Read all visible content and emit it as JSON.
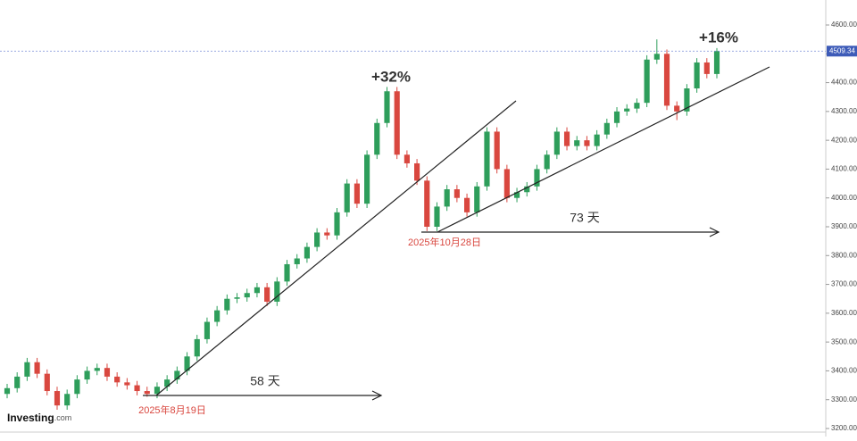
{
  "chart_data": {
    "type": "candlestick",
    "open": [
      3320,
      3340,
      3380,
      3430,
      3390,
      3330,
      3280,
      3320,
      3370,
      3400,
      3410,
      3380,
      3360,
      3350,
      3330,
      3320,
      3345,
      3370,
      3400,
      3450,
      3510,
      3570,
      3610,
      3650,
      3655,
      3670,
      3690,
      3640,
      3710,
      3770,
      3790,
      3830,
      3880,
      3870,
      3950,
      4050,
      3980,
      4150,
      4260,
      4370,
      4150,
      4120,
      4060,
      3900,
      3970,
      4030,
      4000,
      3950,
      4040,
      4230,
      4100,
      4000,
      4020,
      4040,
      4100,
      4150,
      4230,
      4180,
      4200,
      4180,
      4220,
      4260,
      4300,
      4310,
      4330,
      4480,
      4500,
      4320,
      4300,
      4380,
      4470,
      4430
    ],
    "high": [
      3355,
      3395,
      3445,
      3445,
      3405,
      3345,
      3335,
      3385,
      3415,
      3425,
      3425,
      3395,
      3375,
      3365,
      3345,
      3360,
      3385,
      3415,
      3465,
      3525,
      3585,
      3625,
      3665,
      3670,
      3685,
      3705,
      3705,
      3725,
      3785,
      3805,
      3845,
      3895,
      3895,
      3965,
      4065,
      4065,
      4165,
      4275,
      4385,
      4385,
      4165,
      4135,
      4075,
      3985,
      4045,
      4045,
      4015,
      4055,
      4245,
      4245,
      4115,
      4035,
      4055,
      4115,
      4165,
      4245,
      4245,
      4215,
      4215,
      4235,
      4275,
      4315,
      4325,
      4345,
      4495,
      4550,
      4515,
      4335,
      4395,
      4485,
      4485,
      4520
    ],
    "low": [
      3305,
      3325,
      3365,
      3375,
      3315,
      3265,
      3265,
      3305,
      3355,
      3385,
      3365,
      3345,
      3335,
      3315,
      3310,
      3305,
      3330,
      3355,
      3385,
      3435,
      3495,
      3555,
      3595,
      3635,
      3640,
      3655,
      3625,
      3625,
      3695,
      3755,
      3775,
      3815,
      3855,
      3855,
      3935,
      3965,
      3965,
      4135,
      4245,
      4135,
      4105,
      4045,
      3885,
      3885,
      3955,
      3985,
      3935,
      3935,
      4025,
      4085,
      3985,
      3985,
      4005,
      4025,
      4085,
      4135,
      4165,
      4165,
      4165,
      4165,
      4205,
      4245,
      4285,
      4295,
      4315,
      4465,
      4305,
      4270,
      4285,
      4365,
      4415,
      4415
    ],
    "close": [
      3340,
      3380,
      3430,
      3390,
      3330,
      3280,
      3320,
      3370,
      3400,
      3410,
      3380,
      3360,
      3350,
      3330,
      3320,
      3345,
      3370,
      3400,
      3450,
      3510,
      3570,
      3610,
      3650,
      3655,
      3670,
      3690,
      3640,
      3710,
      3770,
      3790,
      3830,
      3880,
      3870,
      3950,
      4050,
      3980,
      4150,
      4260,
      4370,
      4150,
      4120,
      4060,
      3900,
      3970,
      4030,
      4000,
      3950,
      4040,
      4230,
      4100,
      4000,
      4020,
      4040,
      4100,
      4150,
      4230,
      4180,
      4200,
      4180,
      4220,
      4260,
      4300,
      4310,
      4330,
      4480,
      4500,
      4320,
      4300,
      4380,
      4470,
      4430,
      4509.34
    ],
    "up_color": "#2e9e5b",
    "down_color": "#d9473f",
    "ylim": [
      3200,
      4600
    ],
    "yticks": [
      {
        "value": 3200,
        "label": "3200.00"
      },
      {
        "value": 3300,
        "label": "3300.00"
      },
      {
        "value": 3400,
        "label": "3400.00"
      },
      {
        "value": 3500,
        "label": "3500.00"
      },
      {
        "value": 3600,
        "label": "3600.00"
      },
      {
        "value": 3700,
        "label": "3700.00"
      },
      {
        "value": 3800,
        "label": "3800.00"
      },
      {
        "value": 3900,
        "label": "3900.00"
      },
      {
        "value": 4000,
        "label": "4000.00"
      },
      {
        "value": 4100,
        "label": "4100.00"
      },
      {
        "value": 4200,
        "label": "4200.00"
      },
      {
        "value": 4300,
        "label": "4300.00"
      },
      {
        "value": 4400,
        "label": "4400.00"
      },
      {
        "value": 4500,
        "label": "4500.00"
      },
      {
        "value": 4600,
        "label": "4600.00"
      }
    ],
    "last_price": 4509.34,
    "annotations": {
      "gain1": "+32%",
      "gain2": "+16%",
      "days1": "58 天",
      "days2": "73 天",
      "date1": "2025年8月19日",
      "date2": "2025年10月28日"
    },
    "logo": {
      "name": "Investing",
      "suffix": ".com"
    }
  }
}
